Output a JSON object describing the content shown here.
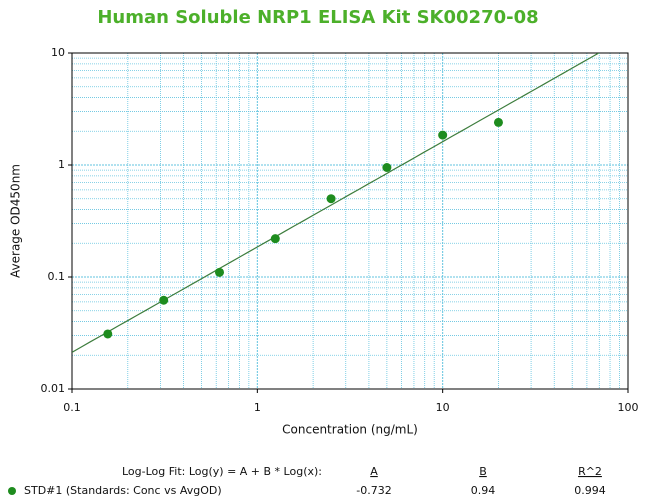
{
  "chart_data": {
    "type": "scatter",
    "title": "Human Soluble NRP1 ELISA Kit SK00270-08",
    "x_label": "Concentration (ng/mL)",
    "y_label": "Average OD450nm",
    "x": [
      0.156,
      0.3125,
      0.625,
      1.25,
      2.5,
      5,
      10,
      20
    ],
    "series": [
      {
        "name": "STD#1 (Standards: Conc vs AvgOD)",
        "color": "#1e8c1e",
        "values": [
          0.031,
          0.062,
          0.11,
          0.22,
          0.5,
          0.95,
          1.85,
          2.4
        ]
      }
    ],
    "xlim": [
      0.1,
      100
    ],
    "ylim": [
      0.01,
      10
    ],
    "xticks": [
      0.1,
      1,
      10,
      100
    ],
    "yticks": [
      0.01,
      0.1,
      1,
      10
    ],
    "log_x": true,
    "log_y": true,
    "grid": true,
    "minor_grid": true,
    "fit": {
      "label": "Log-Log Fit: Log(y) = A + B * Log(x):",
      "columns": [
        "A",
        "B",
        "R^2"
      ],
      "values": [
        -0.732,
        0.94,
        0.994
      ],
      "color": "#3d7d3d"
    }
  }
}
